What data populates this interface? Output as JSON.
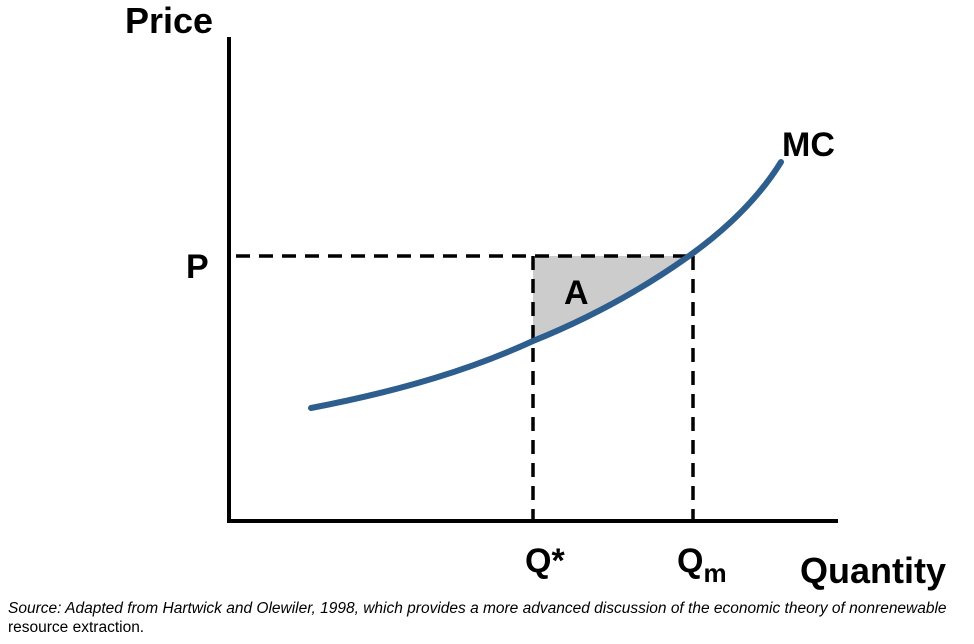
{
  "chart": {
    "y_axis_title": "Price",
    "x_axis_title": "Quantity",
    "curve_label": "MC",
    "price_label": "P",
    "area_label": "A",
    "q_star_label": "Q*",
    "q_m_main": "Q",
    "q_m_subscript": "m"
  },
  "colors": {
    "curve": "#2e5e8e",
    "area_fill": "#cccccc",
    "axis": "#000000"
  },
  "footer": {
    "source_prefix": "Source: Adapted from Hartwick and Olewiler, 1998, which provides a more advanced discussion of the economic theory of ",
    "source_term": "nonrenewable",
    "source_suffix": " resource extraction."
  }
}
